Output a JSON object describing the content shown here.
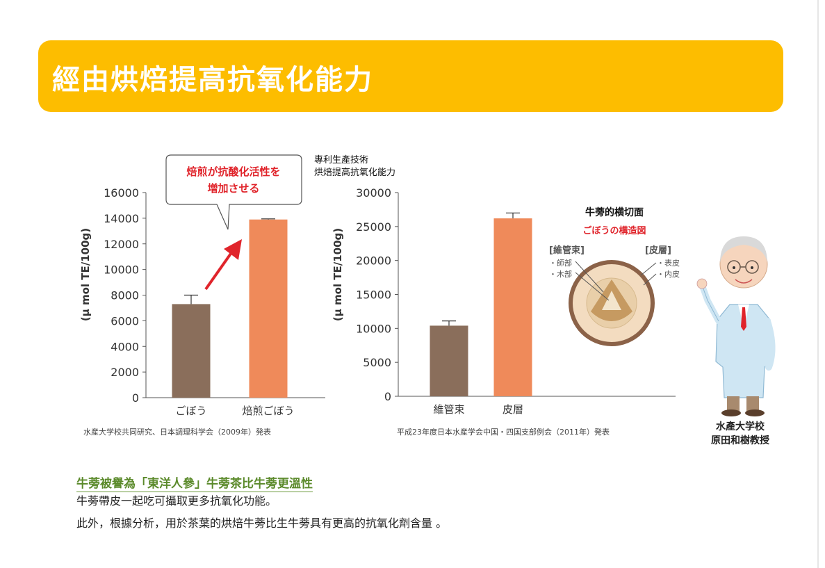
{
  "page": {
    "title": "經由烘焙提高抗氧化能力",
    "colors": {
      "banner": "#fdbd00",
      "bar_dark": "#8a6e5b",
      "bar_light": "#ef8a5a",
      "heading_green": "#5b8a2b",
      "callout_red": "#e0242b"
    }
  },
  "chart_data": [
    {
      "type": "bar",
      "categories": [
        "ごぼう",
        "焙煎ごぼう"
      ],
      "values": [
        7300,
        13900
      ],
      "errors": [
        700,
        50
      ],
      "colors": [
        "#8a6e5b",
        "#ef8a5a"
      ],
      "ylabel": "(μ mol TE/100g)",
      "ylim": [
        0,
        16000
      ],
      "yticks": [
        "0",
        "2000",
        "4000",
        "6000",
        "8000",
        "10000",
        "12000",
        "14000",
        "16000"
      ],
      "callout_line1": "焙煎が抗酸化活性を",
      "callout_line2": "増加させる",
      "source": "水産大学校共同研究、日本調理科学会（2009年）発表"
    },
    {
      "type": "bar",
      "categories": [
        "維管束",
        "皮層"
      ],
      "values": [
        10400,
        26200
      ],
      "errors": [
        700,
        800
      ],
      "colors": [
        "#8a6e5b",
        "#ef8a5a"
      ],
      "ylabel": "(μ mol TE/100g)",
      "ylim": [
        0,
        30000
      ],
      "yticks": [
        "0",
        "5000",
        "10000",
        "15000",
        "20000",
        "25000",
        "30000"
      ],
      "header_line1": "專利生產技術",
      "header_line2": "烘焙提高抗氧化能力",
      "source": "平成23年度日本水産学会中国・四国支部例会（2011年）発表"
    }
  ],
  "diagram": {
    "title": "牛蒡的横切面",
    "subtitle": "ごぼうの構造図",
    "left_group": "[維管束]",
    "left_items": [
      "・師部",
      "・木部"
    ],
    "right_group": "[皮層]",
    "right_items": [
      "・表皮",
      "・内皮"
    ]
  },
  "professor": {
    "line1": "水產大学校",
    "line2": "原田和樹教授"
  },
  "section": {
    "heading": "牛蒡被譽為「東洋人參」牛蒡茶比牛蒡更溫性",
    "line1": "牛蒡帶皮一起吃可攝取更多抗氧化功能。",
    "line2": "此外，根據分析，用於茶葉的烘焙牛蒡比生牛蒡具有更高的抗氧化劑含量 。"
  }
}
